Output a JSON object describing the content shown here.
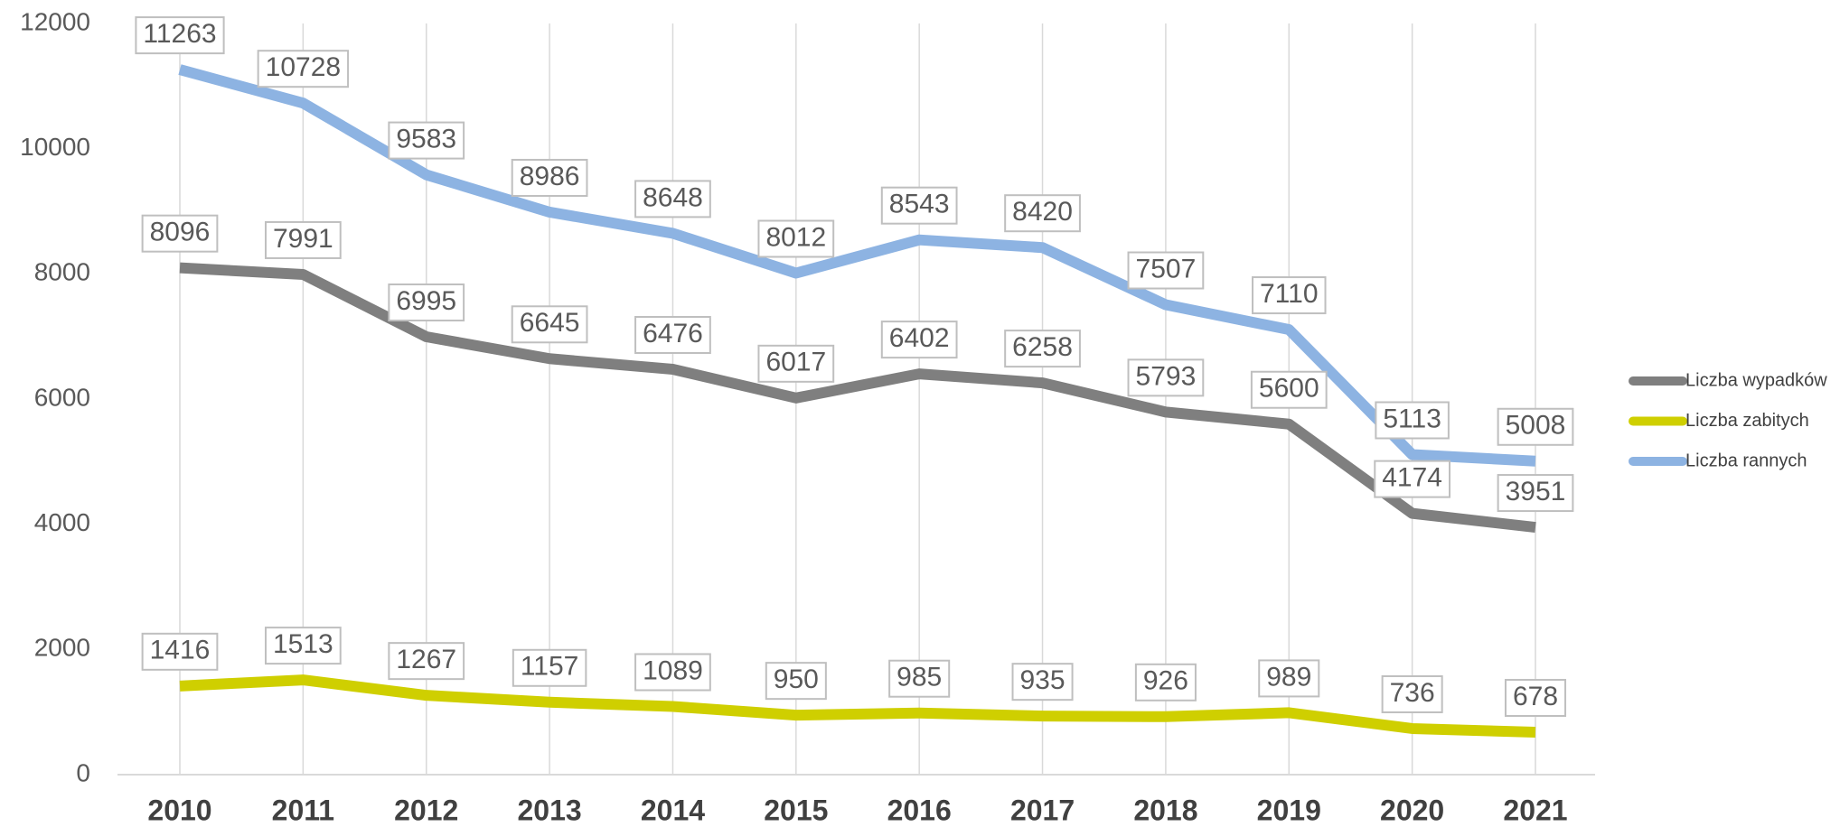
{
  "chart_data": {
    "type": "line",
    "categories": [
      "2010",
      "2011",
      "2012",
      "2013",
      "2014",
      "2015",
      "2016",
      "2017",
      "2018",
      "2019",
      "2020",
      "2021"
    ],
    "series": [
      {
        "name": "Liczba wypadków",
        "color": "#7f7f7f",
        "values": [
          8096,
          7991,
          6995,
          6645,
          6476,
          6017,
          6402,
          6258,
          5793,
          5600,
          4174,
          3951
        ]
      },
      {
        "name": "Liczba zabitych",
        "color": "#cfcf00",
        "values": [
          1416,
          1513,
          1267,
          1157,
          1089,
          950,
          985,
          935,
          926,
          989,
          736,
          678
        ]
      },
      {
        "name": "Liczba rannych",
        "color": "#8db3e2",
        "values": [
          11263,
          10728,
          9583,
          8986,
          8648,
          8012,
          8543,
          8420,
          7507,
          7110,
          5113,
          5008
        ]
      }
    ],
    "ylim": [
      0,
      12000
    ],
    "yticks": [
      0,
      2000,
      4000,
      6000,
      8000,
      10000,
      12000
    ],
    "legend": "right"
  }
}
